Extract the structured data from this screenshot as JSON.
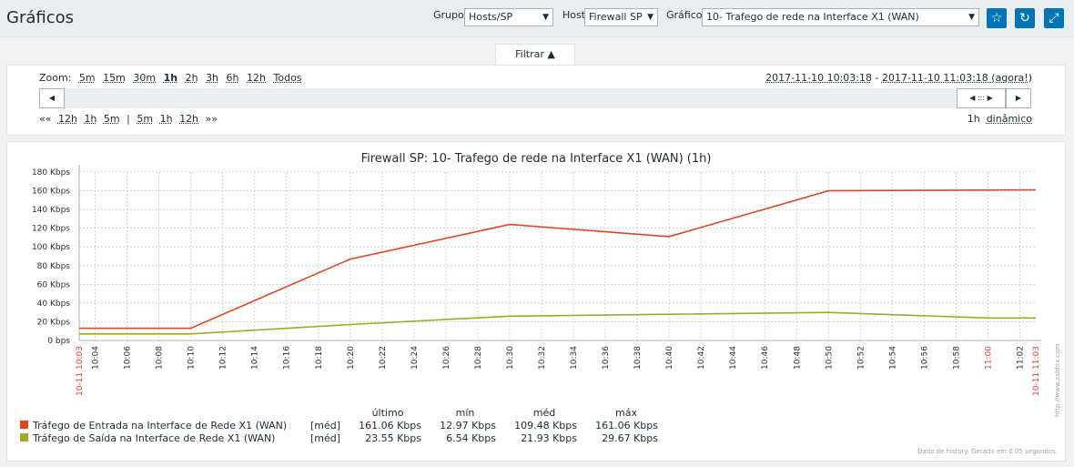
{
  "page": {
    "title": "Gráficos"
  },
  "filters": {
    "group_label": "Grupo",
    "group_value": "Hosts/SP",
    "host_label": "Host",
    "host_value": "Firewall SP",
    "graph_label": "Gráfico",
    "graph_value": "10- Trafego de rede na Interface X1 (WAN)"
  },
  "icons": {
    "favorite": "star-icon",
    "refresh": "refresh-icon",
    "fullscreen": "fullscreen-icon"
  },
  "filter_tab": {
    "label": "Filtrar ▲"
  },
  "zoom": {
    "label": "Zoom:",
    "options": [
      "5m",
      "15m",
      "30m",
      "1h",
      "2h",
      "3h",
      "6h",
      "12h",
      "Todos"
    ],
    "selected": "1h"
  },
  "time_range": {
    "from": "2017-11-10 10:03:18",
    "separator": " - ",
    "to": "2017-11-10 11:03:18 (agora!)"
  },
  "nav": {
    "back_marker": "««",
    "back": [
      "12h",
      "1h",
      "5m"
    ],
    "divider": "|",
    "forward": [
      "5m",
      "1h",
      "12h"
    ],
    "forward_marker": "»»"
  },
  "period": {
    "value": "1h",
    "mode": "dinâmico"
  },
  "scroll": {
    "left_arrow": "◀",
    "handle": "◀ ::: ▶",
    "right_arrow": "▶"
  },
  "chart_data": {
    "type": "line",
    "title": "Firewall SP: 10- Trafego de rede na Interface  X1 (WAN) (1h)",
    "unit": "Kbps",
    "y_tick_labels": [
      "0 bps",
      "20 Kbps",
      "40 Kbps",
      "60 Kbps",
      "80 Kbps",
      "100 Kbps",
      "120 Kbps",
      "140 Kbps",
      "160 Kbps",
      "180 Kbps"
    ],
    "ylim": [
      0,
      180
    ],
    "x_tick_labels": [
      "10-11 10:03",
      "10:04",
      "10:06",
      "10:08",
      "10:10",
      "10:12",
      "10:14",
      "10:16",
      "10:18",
      "10:20",
      "10:22",
      "10:24",
      "10:26",
      "10:28",
      "10:30",
      "10:32",
      "10:34",
      "10:36",
      "10:38",
      "10:40",
      "10:42",
      "10:44",
      "10:46",
      "10:48",
      "10:50",
      "10:52",
      "10:54",
      "10:56",
      "10:58",
      "11:00",
      "11:02",
      "10-11 11:03"
    ],
    "grid": true,
    "series": [
      {
        "name": "Tráfego de Entrada na Interface de Rede X1 (WAN)",
        "color": "#e8411e",
        "points": [
          [
            0,
            13
          ],
          [
            7,
            13
          ],
          [
            17,
            87
          ],
          [
            27,
            124
          ],
          [
            37,
            111
          ],
          [
            47,
            160
          ],
          [
            60,
            161
          ]
        ]
      },
      {
        "name": "Tráfego de Saída na Interface de Rede X1 (WAN)",
        "color": "#a3a922",
        "points": [
          [
            0,
            7
          ],
          [
            7,
            7
          ],
          [
            17,
            17
          ],
          [
            27,
            26
          ],
          [
            37,
            28
          ],
          [
            47,
            30
          ],
          [
            57,
            24
          ],
          [
            60,
            24
          ]
        ]
      }
    ],
    "legend": {
      "headers": [
        "último",
        "mín",
        "méd",
        "máx"
      ],
      "agg": "[méd]",
      "rows": [
        [
          "161.06 Kbps",
          "12.97 Kbps",
          "109.48 Kbps",
          "161.06 Kbps"
        ],
        [
          "23.55 Kbps",
          "6.54 Kbps",
          "21.93 Kbps",
          "29.67 Kbps"
        ]
      ]
    },
    "footer": "Dado de history. Gerado em 0.05 segundos.",
    "watermark": "http://www.zabbix.com"
  }
}
